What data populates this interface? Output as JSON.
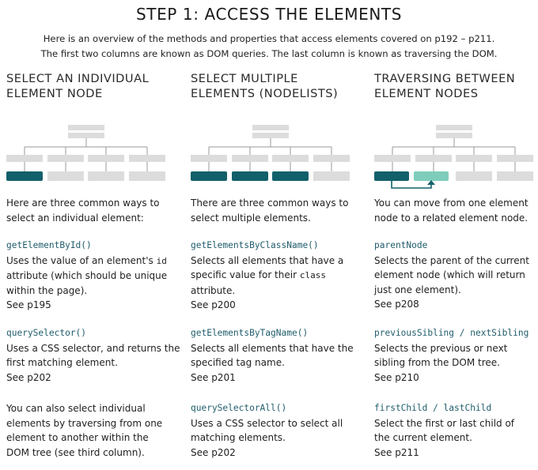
{
  "title": "STEP 1: ACCESS THE ELEMENTS",
  "intro": {
    "line1": "Here is an overview of the methods and properties that access elements covered on p192 – p211.",
    "line2": "The first two columns are known as DOM queries. The last column is known as traversing the DOM."
  },
  "colors": {
    "dark_teal": "#12606a",
    "light_teal": "#7ecdbb",
    "grey_box": "#dcdcdc",
    "code": "#1f5c6b"
  },
  "columns": [
    {
      "heading_line1": "SELECT AN INDIVIDUAL",
      "heading_line2": "ELEMENT NODE",
      "lead": "Here are three common ways to select an individual element:",
      "entries": [
        {
          "code": "getElementById()",
          "desc_a": "Uses the value of an element's ",
          "desc_code": "id",
          "desc_b": " attribute (which should be unique within the page).",
          "see": "See p195"
        },
        {
          "code": "querySelector()",
          "desc_a": "Uses a CSS selector, and returns the first matching element.",
          "desc_code": "",
          "desc_b": "",
          "see": "See p202"
        },
        {
          "code": "",
          "desc_a": "You can also select individual elements by traversing from one element to another within the DOM tree (see third column).",
          "desc_code": "",
          "desc_b": "",
          "see": ""
        }
      ]
    },
    {
      "heading_line1": "SELECT MULTIPLE",
      "heading_line2": "ELEMENTS (NODELISTS)",
      "lead": "There are three common ways to select multiple elements.",
      "entries": [
        {
          "code": "getElementsByClassName()",
          "desc_a": "Selects all elements that have a specific value for their ",
          "desc_code": "class",
          "desc_b": " attribute.",
          "see": "See p200"
        },
        {
          "code": "getElementsByTagName()",
          "desc_a": "Selects all elements that have the specified tag name.",
          "desc_code": "",
          "desc_b": "",
          "see": "See p201"
        },
        {
          "code": "querySelectorAll()",
          "desc_a": "Uses a CSS selector to select all matching elements.",
          "desc_code": "",
          "desc_b": "",
          "see": "See p202"
        }
      ]
    },
    {
      "heading_line1": "TRAVERSING BETWEEN",
      "heading_line2": "ELEMENT NODES",
      "lead": "You can move from one element node to a related element node.",
      "entries": [
        {
          "code": "parentNode",
          "desc_a": "Selects the parent of the current element node (which will return just one element).",
          "desc_code": "",
          "desc_b": "",
          "see": "See p208"
        },
        {
          "code": "previousSibling / nextSibling",
          "desc_a": "Selects the previous or next sibling from the DOM tree.",
          "desc_code": "",
          "desc_b": "",
          "see": "See p210"
        },
        {
          "code": "firstChild / lastChild",
          "desc_a": "Select the first or last child of the current element.",
          "desc_code": "",
          "desc_b": "",
          "see": "See p211"
        }
      ]
    }
  ]
}
